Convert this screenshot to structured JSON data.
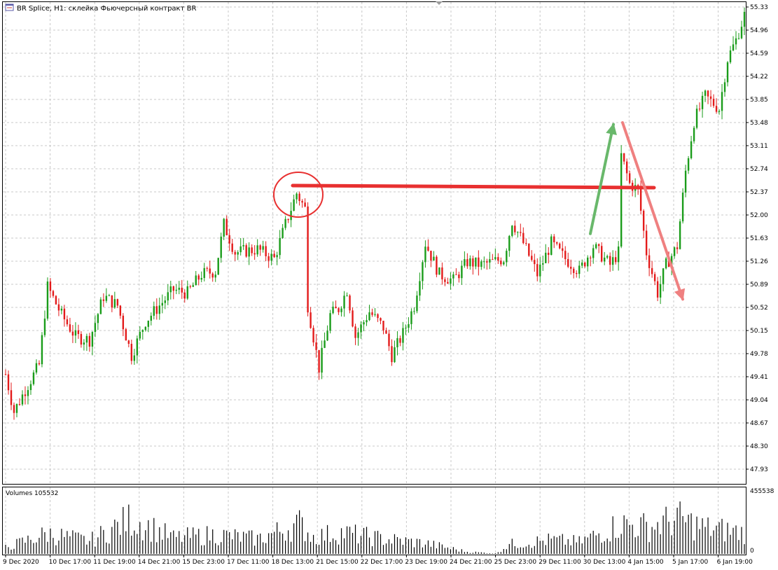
{
  "header": {
    "title": "BR Splice, H1:  склейка Фьючерсный контракт BR"
  },
  "volume_panel": {
    "label": "Volumes 105532",
    "max_label": "455538",
    "zero_label": "0"
  },
  "colors": {
    "bull": "#1a9c1a",
    "bear": "#e31a1a",
    "grid": "#c8c8c8",
    "volume": "#000000",
    "annotation_red": "#e83030",
    "arrow_green": "#69b86b",
    "arrow_red": "#ef8080"
  },
  "chart_data": {
    "type": "candlestick",
    "symbol": "BR Splice",
    "timeframe": "H1",
    "y_ticks": [
      "55.33",
      "54.96",
      "54.59",
      "54.22",
      "53.85",
      "53.48",
      "53.11",
      "52.74",
      "52.37",
      "52.00",
      "51.63",
      "51.26",
      "50.89",
      "50.52",
      "50.15",
      "49.78",
      "49.41",
      "49.04",
      "48.67",
      "48.30",
      "47.93"
    ],
    "ylim": [
      47.62,
      55.38
    ],
    "x_labels": [
      "9 Dec 2020",
      "10 Dec 17:00",
      "11 Dec 19:00",
      "14 Dec 21:00",
      "15 Dec 23:00",
      "17 Dec 11:00",
      "18 Dec 13:00",
      "21 Dec 15:00",
      "22 Dec 17:00",
      "23 Dec 19:00",
      "24 Dec 21:00",
      "25 Dec 23:00",
      "29 Dec 11:00",
      "30 Dec 13:00",
      "4 Jan 15:00",
      "5 Jan 17:00",
      "6 Jan 19:00"
    ],
    "candle_count": 265,
    "close_anchors": [
      [
        0,
        49.45
      ],
      [
        3,
        48.85
      ],
      [
        7,
        49.2
      ],
      [
        12,
        49.6
      ],
      [
        15,
        50.85
      ],
      [
        20,
        50.4
      ],
      [
        25,
        50.05
      ],
      [
        30,
        50.0
      ],
      [
        35,
        50.7
      ],
      [
        40,
        50.55
      ],
      [
        45,
        49.75
      ],
      [
        50,
        50.3
      ],
      [
        55,
        50.55
      ],
      [
        60,
        50.8
      ],
      [
        65,
        50.75
      ],
      [
        70,
        51.05
      ],
      [
        75,
        51.1
      ],
      [
        78,
        51.85
      ],
      [
        82,
        51.4
      ],
      [
        90,
        51.45
      ],
      [
        96,
        51.3
      ],
      [
        100,
        51.85
      ],
      [
        104,
        52.35
      ],
      [
        107,
        52.1
      ],
      [
        108,
        50.55
      ],
      [
        112,
        49.55
      ],
      [
        116,
        50.4
      ],
      [
        119,
        50.5
      ],
      [
        122,
        50.8
      ],
      [
        125,
        50.05
      ],
      [
        130,
        50.45
      ],
      [
        135,
        50.2
      ],
      [
        138,
        49.75
      ],
      [
        142,
        50.1
      ],
      [
        146,
        50.55
      ],
      [
        150,
        51.55
      ],
      [
        155,
        51.05
      ],
      [
        160,
        50.95
      ],
      [
        165,
        51.25
      ],
      [
        170,
        51.2
      ],
      [
        178,
        51.3
      ],
      [
        181,
        51.9
      ],
      [
        185,
        51.55
      ],
      [
        190,
        51.05
      ],
      [
        195,
        51.55
      ],
      [
        200,
        51.3
      ],
      [
        205,
        51.1
      ],
      [
        210,
        51.5
      ],
      [
        216,
        51.2
      ],
      [
        219,
        51.4
      ],
      [
        220,
        52.95
      ],
      [
        223,
        52.5
      ],
      [
        226,
        52.4
      ],
      [
        229,
        51.4
      ],
      [
        233,
        50.75
      ],
      [
        236,
        51.2
      ],
      [
        240,
        51.5
      ],
      [
        243,
        52.7
      ],
      [
        246,
        53.5
      ],
      [
        250,
        53.9
      ],
      [
        255,
        53.7
      ],
      [
        258,
        54.5
      ],
      [
        261,
        54.8
      ],
      [
        264,
        55.2
      ]
    ],
    "volume_anchors": [
      [
        0,
        60000
      ],
      [
        15,
        190000
      ],
      [
        30,
        120000
      ],
      [
        45,
        330000
      ],
      [
        60,
        150000
      ],
      [
        75,
        180000
      ],
      [
        90,
        140000
      ],
      [
        105,
        280000
      ],
      [
        110,
        160000
      ],
      [
        120,
        200000
      ],
      [
        135,
        140000
      ],
      [
        150,
        100000
      ],
      [
        165,
        20000
      ],
      [
        175,
        5000
      ],
      [
        180,
        90000
      ],
      [
        195,
        130000
      ],
      [
        205,
        110000
      ],
      [
        220,
        280000
      ],
      [
        230,
        250000
      ],
      [
        240,
        330000
      ],
      [
        250,
        240000
      ],
      [
        264,
        200000
      ]
    ],
    "volume_ylim": [
      0,
      455538
    ],
    "annotations": {
      "resistance_level": 52.46,
      "circle_center": 52.37,
      "green_arrow_from": 51.7,
      "green_arrow_to": 53.45,
      "red_arrow_from": 53.48,
      "red_arrow_to": 50.65
    }
  }
}
